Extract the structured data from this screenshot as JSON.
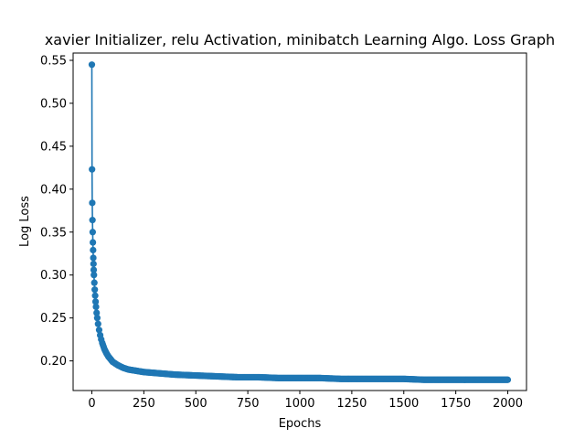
{
  "chart_data": {
    "type": "line",
    "title": "xavier Initializer, relu Activation, minibatch Learning Algo. Loss Graph",
    "xlabel": "Epochs",
    "ylabel": "Log Loss",
    "xlim": [
      -90,
      2090
    ],
    "ylim": [
      0.1655,
      0.5585
    ],
    "xticks": [
      0,
      250,
      500,
      750,
      1000,
      1250,
      1500,
      1750,
      2000
    ],
    "yticks": [
      0.2,
      0.25,
      0.3,
      0.35,
      0.4,
      0.45,
      0.5,
      0.55
    ],
    "xtick_labels": [
      "0",
      "250",
      "500",
      "750",
      "1000",
      "1250",
      "1500",
      "1750",
      "2000"
    ],
    "ytick_labels": [
      "0.20",
      "0.25",
      "0.30",
      "0.35",
      "0.40",
      "0.45",
      "0.50",
      "0.55"
    ],
    "grid": false,
    "marker": "circle",
    "color": "#1f77b4",
    "series": [
      {
        "x": [
          0,
          1,
          2,
          3,
          4,
          5,
          6,
          7,
          8,
          9,
          10,
          12,
          14,
          16,
          18,
          20,
          23,
          26,
          30,
          35,
          40,
          45,
          50,
          60,
          70,
          80,
          90,
          100,
          125,
          150,
          175,
          200,
          250,
          300,
          350,
          400,
          500,
          600,
          700,
          800,
          900,
          1000,
          1100,
          1200,
          1300,
          1400,
          1500,
          1600,
          1700,
          1800,
          1900,
          2000
        ],
        "y": [
          0.545,
          0.423,
          0.384,
          0.364,
          0.35,
          0.338,
          0.329,
          0.32,
          0.313,
          0.306,
          0.3,
          0.291,
          0.283,
          0.276,
          0.269,
          0.263,
          0.256,
          0.25,
          0.243,
          0.236,
          0.23,
          0.225,
          0.221,
          0.214,
          0.209,
          0.205,
          0.202,
          0.199,
          0.195,
          0.192,
          0.19,
          0.189,
          0.187,
          0.186,
          0.185,
          0.184,
          0.183,
          0.182,
          0.181,
          0.181,
          0.18,
          0.18,
          0.18,
          0.179,
          0.179,
          0.179,
          0.179,
          0.178,
          0.178,
          0.178,
          0.178,
          0.178
        ]
      }
    ]
  }
}
